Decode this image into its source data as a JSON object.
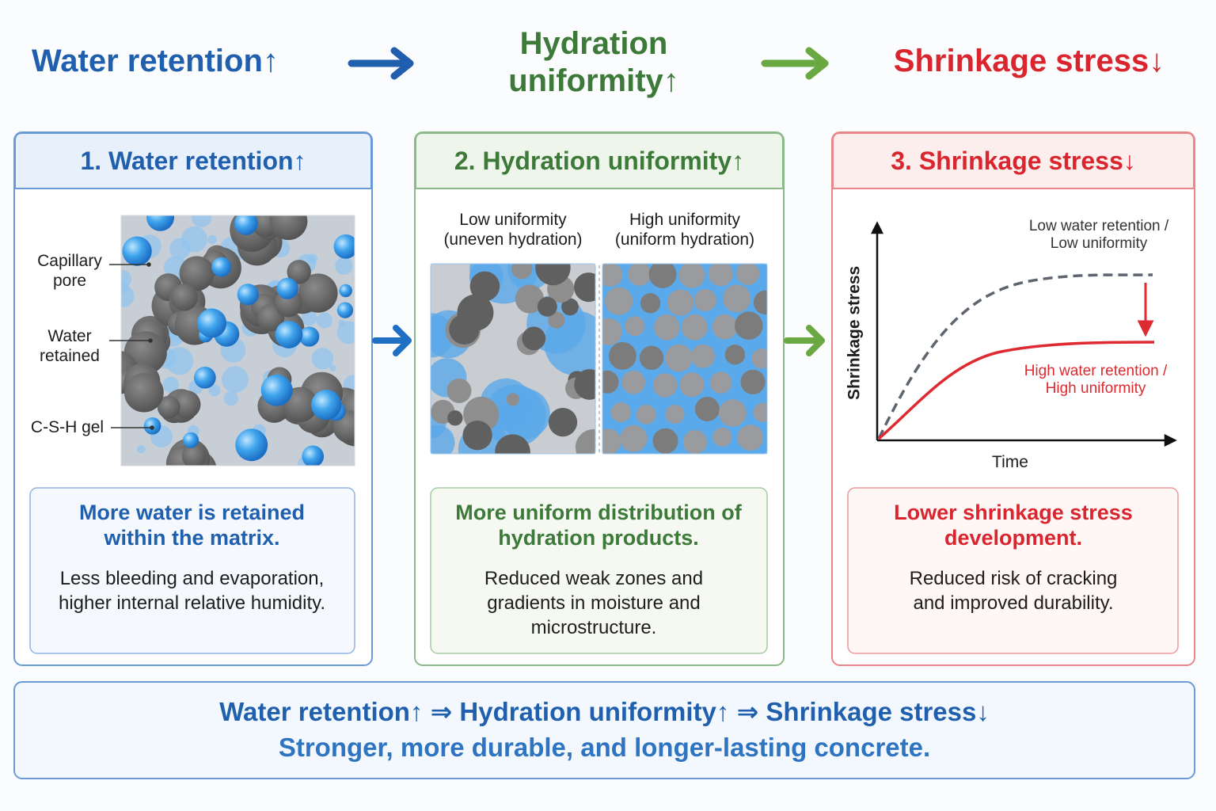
{
  "header": {
    "steps": [
      "Water retention↑",
      "Hydration uniformity↑",
      "Shrinkage stress↓"
    ]
  },
  "panels": [
    {
      "title": "1. Water retention↑",
      "labels": [
        "Capillary pore",
        "Water retained",
        "C-S-H gel"
      ],
      "caption": {
        "heading": "More water is retained within the matrix.",
        "body": "Less bleeding and evaporation, higher internal relative humidity."
      }
    },
    {
      "title": "2. Hydration uniformity↑",
      "labels": [
        "Low uniformity (uneven hydration)",
        "High uniformity (uniform hydration)"
      ],
      "caption": {
        "heading": "More uniform distribution of hydration products.",
        "body": "Reduced weak zones and gradients in moisture and microstructure."
      }
    },
    {
      "title": "3. Shrinkage stress↓",
      "chart": {
        "y_label": "Shrinkage stress",
        "x_label": "Time",
        "curves": [
          "Low water retention / Low uniformity",
          "High water retention / High uniformity"
        ]
      },
      "caption": {
        "heading": "Lower shrinkage stress development.",
        "body": "Reduced risk of cracking and improved durability."
      }
    }
  ],
  "summary": {
    "chain": "Water retention↑ ⇒ Hydration uniformity↑ ⇒ Shrinkage stress↓",
    "conclusion": "Stronger, more durable, and longer-lasting concrete."
  }
}
